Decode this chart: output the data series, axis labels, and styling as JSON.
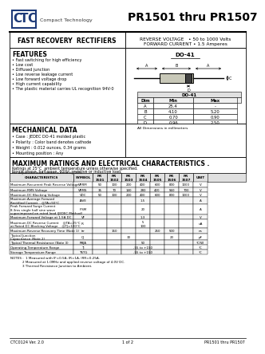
{
  "title": "PR1501 thru PR1507",
  "company_sub": "Compact Technology",
  "part_type": "FAST RECOVERY  RECTIFIERS",
  "reverse_voltage": "REVERSE VOLTAGE   • 50 to 1000 Volts",
  "forward_current": "FORWARD CURRENT • 1.5 Amperes",
  "package": "DO-41",
  "features_title": "FEATURES",
  "features": [
    "• Fast switching for high efficiency",
    "• Low cost",
    "• Diffused junction",
    "• Low reverse leakage current",
    "• Low forward voltage drop",
    "• High current capability",
    "• The plastic material carries UL recognition 94V-0"
  ],
  "mech_title": "MECHANICAL DATA",
  "mech": [
    "• Case : JEDEC DO-41 molded plastic",
    "• Polarity : Color band denotes cathode",
    "• Weight : 0.012 ounces, 0.34 grams",
    "• Mounting position : Any"
  ],
  "dim_table_title": "DO-41",
  "dim_headers": [
    "Dim",
    "Min",
    "Max"
  ],
  "dim_rows": [
    [
      "A",
      "25.4",
      "-"
    ],
    [
      "B",
      "4.10",
      "5.20"
    ],
    [
      "C",
      "0.70",
      "0.90"
    ],
    [
      "D",
      "0.96",
      "2.50"
    ]
  ],
  "dim_note": "All Dimensions in millimeters",
  "max_ratings_title": "MAXIMUM RATINGS AND ELECTRICAL CHARACTERISTICS .",
  "max_ratings_sub1": "Ratings at 25°C  ambient temperature unless otherwise specified.",
  "max_ratings_sub2": "Single phase, half wave, 60Hz, resistive or inductive load.",
  "max_ratings_sub3": "For capacitive load, derate current by 20%",
  "char_headers": [
    "CHARACTERISTICS",
    "SYMBOL",
    "PR\n1501",
    "PR\n1502",
    "PR\n1503",
    "PR\n1504",
    "PR\n1505",
    "PR\n1506",
    "PR\n1507",
    "UNIT"
  ],
  "char_rows": [
    [
      "Maximum Recurrent Peak Reverse Voltage",
      "VRRM",
      "50",
      "100",
      "200",
      "400",
      "600",
      "800",
      "1000",
      "V"
    ],
    [
      "Maximum RMS Voltage",
      "VRMS",
      "35",
      "70",
      "140",
      "280",
      "420",
      "560",
      "700",
      "V"
    ],
    [
      "Maximum DC Blocking Voltage",
      "VDC",
      "50",
      "100",
      "200",
      "400",
      "600",
      "800",
      "1000",
      "V"
    ],
    [
      "Maximum Average Forward\nRectified Current    @TA=50°C",
      "IAVE",
      "",
      "",
      "",
      "1.5",
      "",
      "",
      "",
      "A"
    ],
    [
      "Peak Forward Surge Current\n8.3ms single half sine wave\nsuperimposed on rated load (JEDEC Method)",
      "IFSM",
      "",
      "",
      "",
      "20",
      "",
      "",
      "",
      "A"
    ],
    [
      "Maximum Forward Voltage at 1.5A DC",
      "VF",
      "",
      "",
      "",
      "1.3",
      "",
      "",
      "",
      "V"
    ],
    [
      "Maximum DC Reverse Current    @TA=25°C\nat Rated DC Blocking Voltage    @TJ=100°C",
      "IR",
      "",
      "",
      "",
      "5\n100",
      "",
      "",
      "",
      "uA"
    ],
    [
      "Maximum Reverse Recovery Time (Note 1)",
      "trr",
      "",
      "150",
      "",
      "",
      "250",
      "500",
      "",
      "ns"
    ],
    [
      "Typical Junction\nCapacitance (Note 2)",
      "CJ",
      "",
      "",
      "30",
      "",
      "",
      "20",
      "",
      "pF"
    ],
    [
      "Typical Thermal Resistance (Note 3)",
      "RθJA",
      "",
      "",
      "",
      "50",
      "",
      "",
      "",
      "°C/W"
    ],
    [
      "Operating Temperature Range",
      "TJ",
      "",
      "",
      "",
      "-55 to +150",
      "",
      "",
      "",
      "°C"
    ],
    [
      "Storage Temperature Range",
      "TSTG",
      "",
      "",
      "",
      "-55 to +150",
      "",
      "",
      "",
      "°C"
    ]
  ],
  "notes": [
    "NOTES :  1 Measured with IF=0.5A, IR=1A, IRR=0.25A.",
    "            2 Measured at 1.0MHz and applied reverse voltage of 4.0V DC.",
    "            3 Thermal Resistance Junction to Ambient."
  ],
  "footer_left": "CTC0124 Ver. 2.0",
  "footer_mid": "1 of 2",
  "footer_right": "PR1501 thru PR1507",
  "blue_color": "#1e3a78"
}
